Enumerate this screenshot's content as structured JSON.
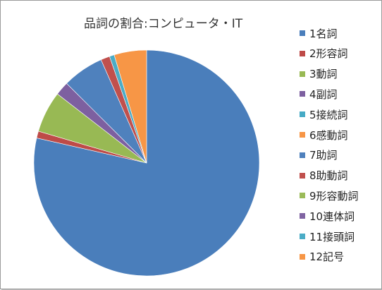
{
  "chart_data": {
    "type": "pie",
    "title": "品詞の割合:コンピュータ・IT",
    "legend_position": "right",
    "categories": [
      "1名詞",
      "2形容詞",
      "3動詞",
      "4副詞",
      "5接続詞",
      "6感動詞",
      "7助詞",
      "8助動詞",
      "9形容動詞",
      "10連体詞",
      "11接頭詞",
      "12記号"
    ],
    "values": [
      79.5,
      1.0,
      6.0,
      2.0,
      0.0,
      0.0,
      6.0,
      1.3,
      0.0,
      0.0,
      0.7,
      4.7
    ],
    "colors": [
      "#4A7EBB",
      "#BE4B48",
      "#98B954",
      "#7D60A0",
      "#46AAC5",
      "#F79646",
      "#4F81BD",
      "#C0504D",
      "#9BBB59",
      "#8064A2",
      "#4BACC6",
      "#F79646"
    ]
  }
}
